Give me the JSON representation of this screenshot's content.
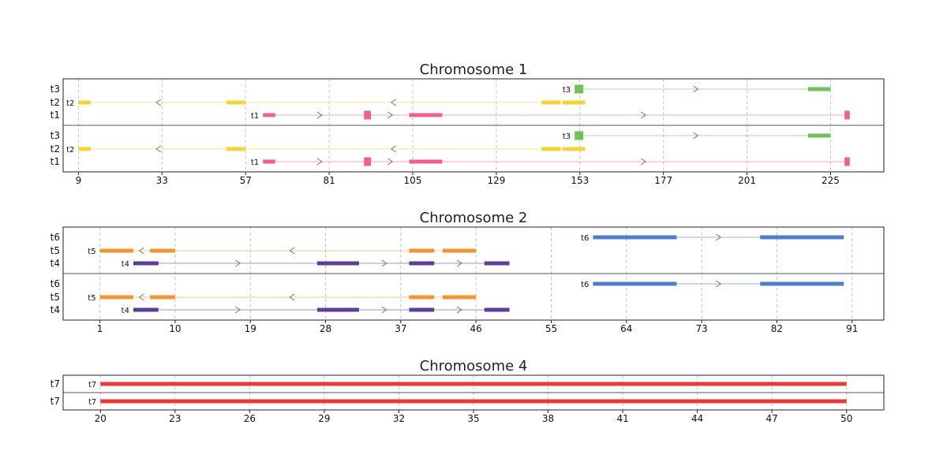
{
  "chart_data": [
    {
      "type": "gene-track",
      "title": "Chromosome 1",
      "xlim": [
        4.6,
        240.3
      ],
      "xticks": [
        9,
        33,
        57,
        81,
        105,
        129,
        153,
        177,
        201,
        225
      ],
      "grid": true,
      "panels": 2,
      "tracks": [
        {
          "name": "t3",
          "color": "#71c05c",
          "strand": "+",
          "start": 151.5,
          "end": 225,
          "exons": [
            [
              151.5,
              154
            ],
            [
              218.5,
              225
            ]
          ]
        },
        {
          "name": "t2",
          "color": "#f2d33a",
          "strand": "-",
          "start": 9,
          "end": 154.5,
          "exons": [
            [
              9,
              12.5
            ],
            [
              51.5,
              57
            ],
            [
              142,
              147.5
            ],
            [
              148,
              154.5
            ]
          ]
        },
        {
          "name": "t1",
          "color": "#ef5f8f",
          "strand": "+",
          "start": 62,
          "end": 230.5,
          "exons": [
            [
              62,
              65.5
            ],
            [
              91,
              93
            ],
            [
              104,
              113.5
            ],
            [
              229,
              230.5
            ]
          ]
        }
      ]
    },
    {
      "type": "gene-track",
      "title": "Chromosome 2",
      "xlim": [
        -3.4,
        94.8
      ],
      "xticks": [
        1,
        10,
        19,
        28,
        37,
        46,
        55,
        64,
        73,
        82,
        91
      ],
      "grid": true,
      "panels": 2,
      "tracks": [
        {
          "name": "t6",
          "color": "#4f7ec6",
          "strand": "+",
          "start": 60,
          "end": 90,
          "exons": [
            [
              60,
              70
            ],
            [
              80,
              90
            ]
          ]
        },
        {
          "name": "t5",
          "color": "#f39433",
          "strand": "-",
          "start": 1,
          "end": 46,
          "exons": [
            [
              1,
              5
            ],
            [
              7,
              10
            ],
            [
              38,
              41
            ],
            [
              42,
              46
            ]
          ]
        },
        {
          "name": "t4",
          "color": "#5c3d9a",
          "strand": "+",
          "start": 5,
          "end": 50,
          "exons": [
            [
              5,
              8
            ],
            [
              27,
              32
            ],
            [
              38,
              41
            ],
            [
              47,
              50
            ]
          ]
        }
      ]
    },
    {
      "type": "gene-track",
      "title": "Chromosome 4",
      "xlim": [
        18.5,
        51.5
      ],
      "xticks": [
        20,
        23,
        26,
        29,
        32,
        35,
        38,
        41,
        44,
        47,
        50
      ],
      "grid": true,
      "panels": 2,
      "tracks": [
        {
          "name": "t7",
          "color": "#e8393a",
          "strand": "+",
          "start": 20,
          "end": 50,
          "exons": [
            [
              20,
              50
            ]
          ]
        }
      ]
    }
  ]
}
